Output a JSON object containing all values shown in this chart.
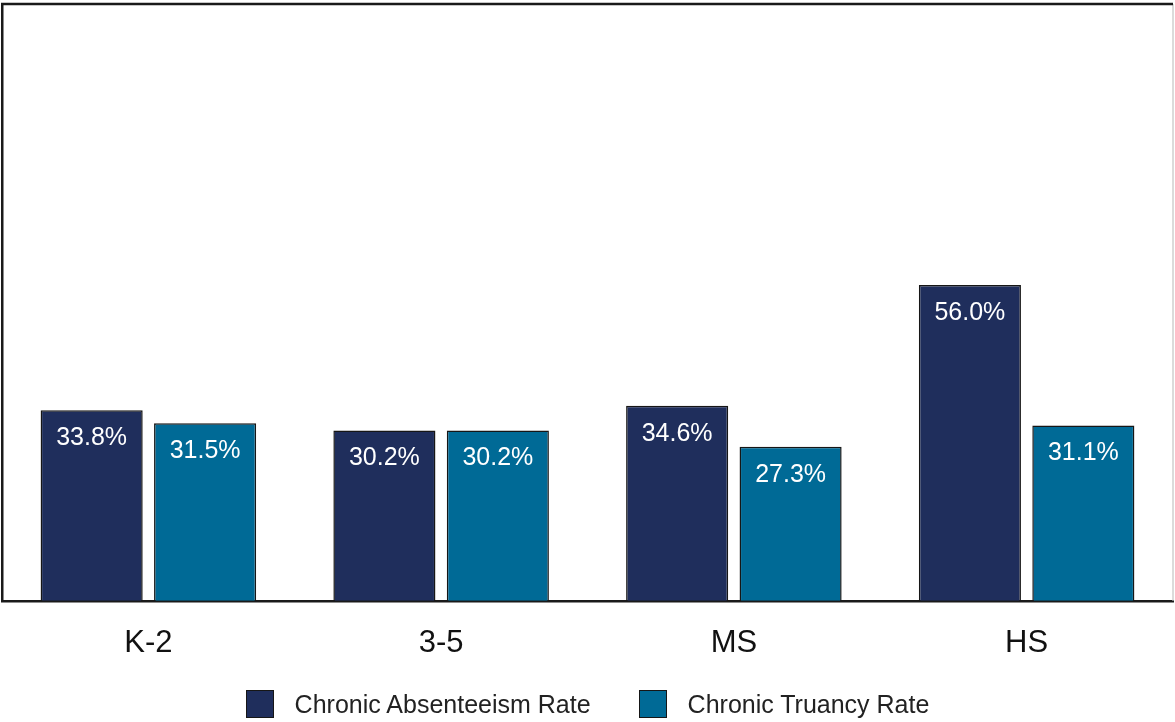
{
  "chart_data": {
    "type": "bar",
    "categories": [
      "K-2",
      "3-5",
      "MS",
      "HS"
    ],
    "series": [
      {
        "name": "Chronic Absenteeism Rate",
        "color": "#1f2e5c",
        "values": [
          33.8,
          30.2,
          34.6,
          56.0
        ],
        "value_labels": [
          "33.8%",
          "30.2%",
          "34.6%",
          "56.0%"
        ]
      },
      {
        "name": "Chronic Truancy Rate",
        "color": "#006a96",
        "values": [
          31.5,
          30.2,
          27.3,
          31.1
        ],
        "value_labels": [
          "31.5%",
          "30.2%",
          "27.3%",
          "31.1%"
        ]
      }
    ],
    "grid": false,
    "legend": "bottom",
    "tick_labels": "x"
  }
}
